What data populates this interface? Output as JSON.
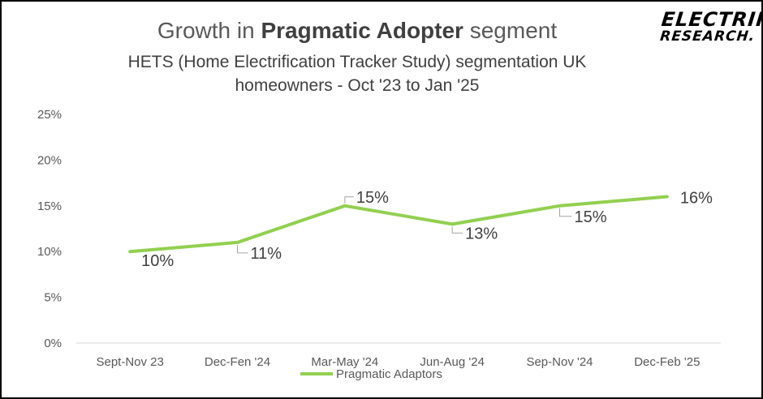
{
  "header": {
    "title_prefix": "Growth in ",
    "title_bold": "Pragmatic Adopter",
    "title_suffix": " segment",
    "subtitle_line1": "HETS (Home Electrification Tracker Study) segmentation UK",
    "subtitle_line2": "homeowners - Oct '23 to Jan '25"
  },
  "logo": {
    "line1": "ELECTRIFY",
    "line2": "RESEARCH."
  },
  "chart_data": {
    "type": "line",
    "categories": [
      "Sept-Nov 23",
      "Dec-Fen '24",
      "Mar-May '24",
      "Jun-Aug '24",
      "Sep-Nov '24",
      "Dec-Feb '25"
    ],
    "series": [
      {
        "name": "Pragmatic Adaptors",
        "values": [
          10,
          11,
          15,
          13,
          15,
          16
        ],
        "color": "#92D050"
      }
    ],
    "data_labels": [
      "10%",
      "11%",
      "15%",
      "13%",
      "15%",
      "16%"
    ],
    "ylim": [
      0,
      25
    ],
    "yticks": [
      "0%",
      "5%",
      "10%",
      "15%",
      "20%",
      "25%"
    ],
    "ytick_values": [
      0,
      5,
      10,
      15,
      20,
      25
    ],
    "grid": false,
    "legend_position": "bottom"
  }
}
